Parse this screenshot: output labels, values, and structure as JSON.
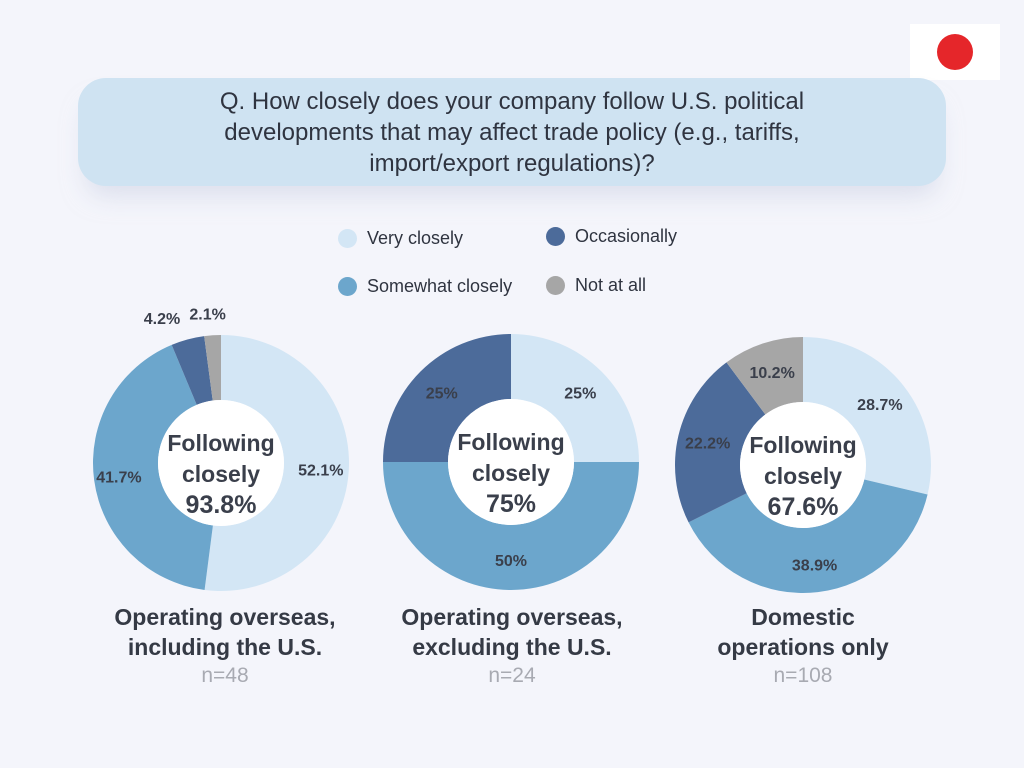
{
  "question": "Q. How closely does your company follow U.S. political developments that may affect trade policy (e.g., tariffs, import/export regulations)?",
  "colors": {
    "very_closely": "#d3e6f5",
    "somewhat_closely": "#6ca6cc",
    "occasionally": "#4c6b9a",
    "not_at_all": "#a6a6a6",
    "flag_disc": "#e5262a"
  },
  "flag": {
    "icon": "japan-flag-icon"
  },
  "chart_data": [
    {
      "type": "pie",
      "title": "Operating overseas, including the U.S.",
      "n_label": "n=48",
      "center_label": [
        "Following",
        "closely"
      ],
      "center_value": "93.8%",
      "categories": [
        "Very closely",
        "Somewhat closely",
        "Occasionally",
        "Not at all"
      ],
      "values": [
        52.1,
        41.7,
        4.2,
        2.1
      ],
      "value_labels": [
        "52.1%",
        "41.7%",
        "4.2%",
        "2.1%"
      ]
    },
    {
      "type": "pie",
      "title": "Operating overseas, excluding the U.S.",
      "n_label": "n=24",
      "center_label": [
        "Following",
        "closely"
      ],
      "center_value": "75%",
      "categories": [
        "Very closely",
        "Somewhat closely",
        "Occasionally",
        "Not at all"
      ],
      "values": [
        25,
        50,
        25,
        0
      ],
      "value_labels": [
        "25%",
        "50%",
        "25%",
        ""
      ]
    },
    {
      "type": "pie",
      "title": "Domestic operations only",
      "n_label": "n=108",
      "center_label": [
        "Following",
        "closely"
      ],
      "center_value": "67.6%",
      "categories": [
        "Very closely",
        "Somewhat closely",
        "Occasionally",
        "Not at all"
      ],
      "values": [
        28.7,
        38.9,
        22.2,
        10.2
      ],
      "value_labels": [
        "28.7%",
        "38.9%",
        "22.2%",
        "10.2%"
      ]
    }
  ],
  "legend": [
    {
      "label": "Very closely",
      "color": "#d3e6f5"
    },
    {
      "label": "Occasionally",
      "color": "#4c6b9a"
    },
    {
      "label": "Somewhat closely",
      "color": "#6ca6cc"
    },
    {
      "label": "Not at all",
      "color": "#a6a6a6"
    }
  ],
  "legend_placement": "top-center"
}
